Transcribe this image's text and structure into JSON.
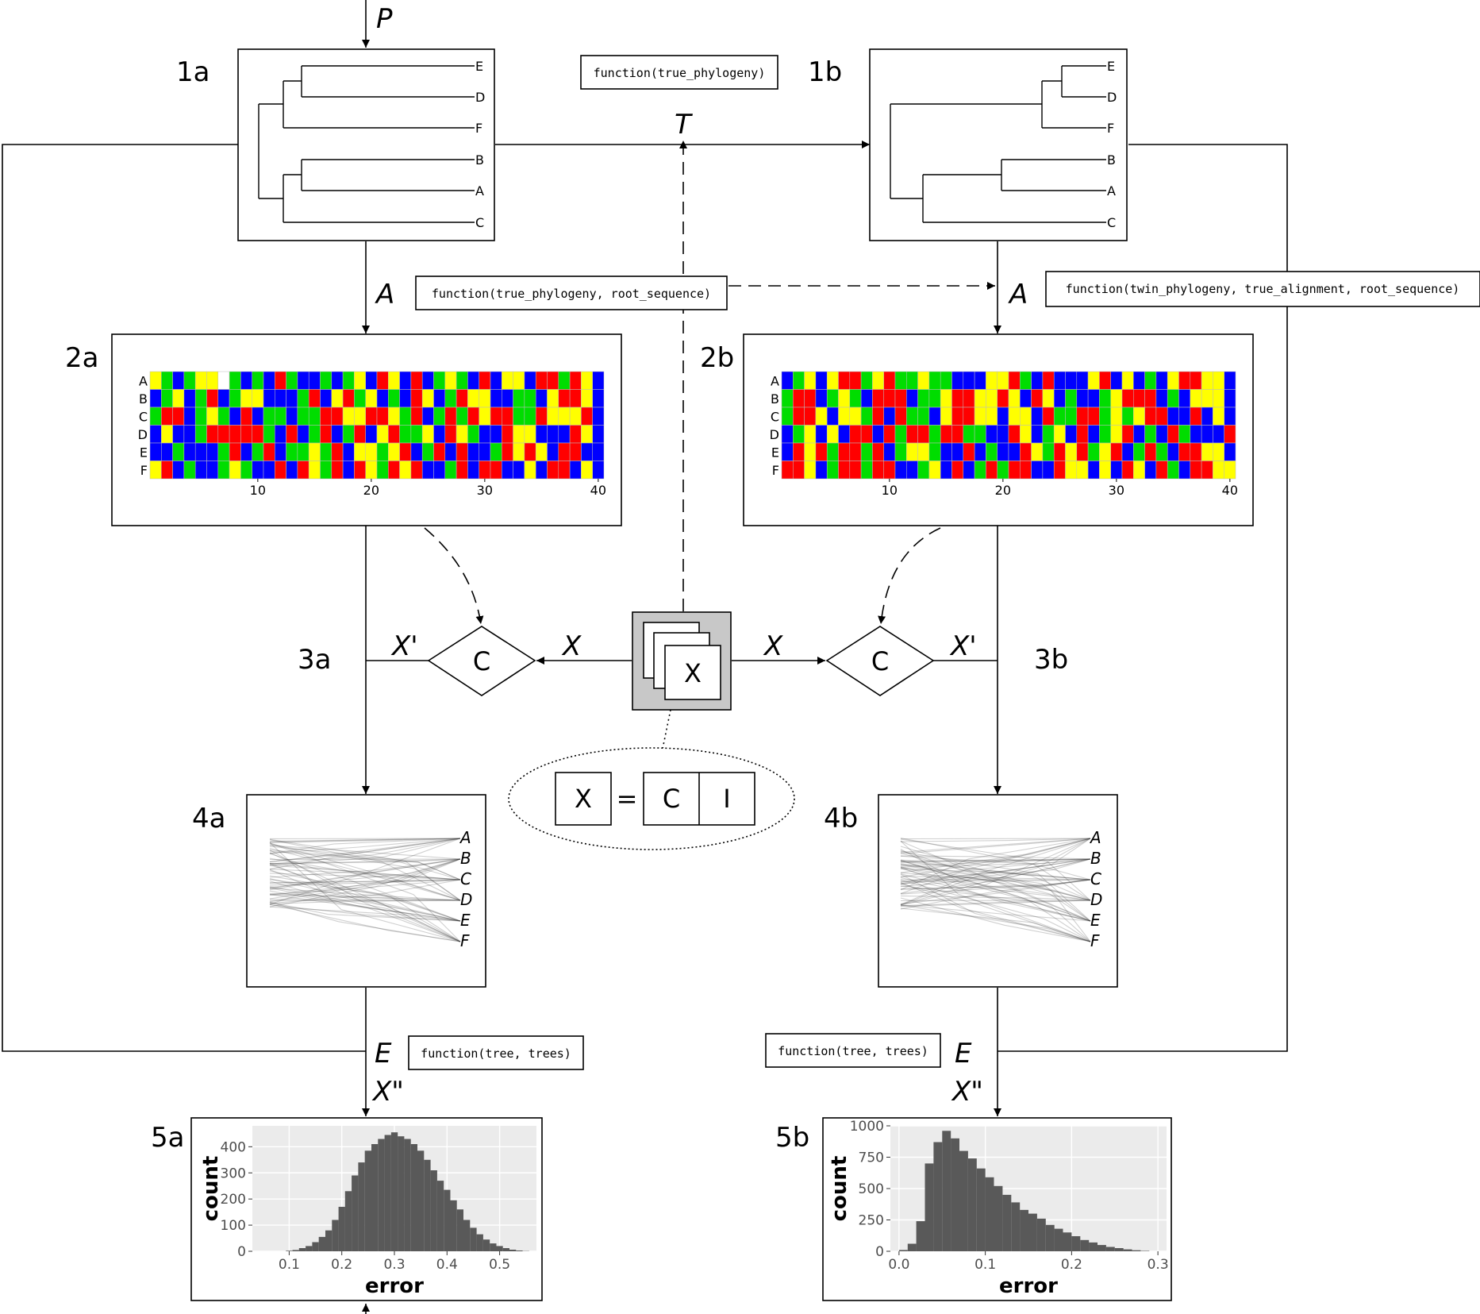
{
  "edges": {
    "input": "P",
    "tree_to_alignment": "A",
    "tree_to_twin": "T",
    "alignment_to_posterior": "X'",
    "settings": "X",
    "posterior_to_errors_e": "E",
    "posterior_to_errors_x": "X\""
  },
  "steps": {
    "s1a": "1a",
    "s1b": "1b",
    "s2a": "2a",
    "s2b": "2b",
    "s3a": "3a",
    "s3b": "3b",
    "s4a": "4a",
    "s4b": "4b",
    "s5a": "5a",
    "s5b": "5b"
  },
  "functions": {
    "twin_tree": "function(true_phylogeny)",
    "true_alignment": "function(true_phylogeny, root_sequence)",
    "twin_alignment": "function(twin_phylogeny, true_alignment, root_sequence)",
    "errors_true": "function(tree, trees)",
    "errors_twin": "function(tree, trees)"
  },
  "check_label": "C",
  "settings": {
    "label": "X",
    "equation": {
      "lhs": "X",
      "eq": "=",
      "parts": [
        "C",
        "I"
      ]
    }
  },
  "tips_ordered": [
    "E",
    "D",
    "F",
    "B",
    "A",
    "C"
  ],
  "true_tree_tips": [
    "E",
    "D",
    "F",
    "B",
    "A",
    "C"
  ],
  "twin_tree_tips": [
    "E",
    "D",
    "F",
    "B",
    "A",
    "C"
  ],
  "alignment": {
    "taxa": [
      "A",
      "B",
      "C",
      "D",
      "E",
      "F"
    ],
    "ticks": [
      "10",
      "20",
      "30",
      "40"
    ],
    "length": 40,
    "colors": {
      "A": "#ff0000",
      "C": "#00dd00",
      "G": "#0000ff",
      "T": "#ffff00"
    },
    "true": {
      "A": "TCGCTTACGCGRCGGCGCTGRTGRGCTCGRGTTGRRCRTG",
      "B": "GCTGCRGCTTGGGCRGTRCTGCGRTGCRTTGGCCGTRRTG",
      "C": "CRRGCTCGRGCCGCCRRTTRRTCRGCRCRTRRCCRTTTRG",
      "D": "GTGGCRRRRRCGRGCRGCRGTRCCTGRTCGGRTTGGGRTG",
      "E": "GGCGGGCRGCRGCCTCRGTTCTRGCRGRGGCRTRTGRRGG",
      "F": "TRGCGGCTCGGRGRTCRGRTCRTRGGCRGRRGGTGRRGTG"
    },
    "twin": {
      "A": "GCTGTRRCTRCCTCCGGGTTRCGRGGGTRGTGCGTRRTTG",
      "B": "CRRGCTCGRRRGCCTRRTTRTGRTGCGGCTRRRGCGTTTG",
      "C": "CRRTGTTCRGRCCGTRRTTGTTGRCCRRCTCTRRGGRGTG",
      "D": "GCTGTGRRGRCRRCRRCCGGRTGCTGRGCTRGCGRCGGGR",
      "E": "GRTRCRRCRGCTTCGGRGCGGRTCRTRCTRGCRCGRRTTG",
      "F": "RRTGCRRCRRGGCTGRGCRCRRGGRTTGTGRTGRCGRRTT"
    }
  },
  "posterior_tips": [
    "A",
    "B",
    "C",
    "D",
    "E",
    "F"
  ],
  "histograms": {
    "true": {
      "ylabel": "count",
      "xlabel": "error",
      "yticks": [
        "0",
        "100",
        "200",
        "300",
        "400"
      ],
      "xticks": [
        "0.1",
        "0.2",
        "0.3",
        "0.4",
        "0.5"
      ]
    },
    "twin": {
      "ylabel": "count",
      "xlabel": "error",
      "yticks": [
        "0",
        "250",
        "500",
        "750",
        "1000"
      ],
      "xticks": [
        "0.0",
        "0.1",
        "0.2",
        "0.3"
      ]
    }
  },
  "chart_data": [
    {
      "type": "bar",
      "ylabel": "count",
      "xlabel": "error",
      "xlim": [
        0.03,
        0.57
      ],
      "ylim": [
        0,
        480
      ],
      "grid": true,
      "bin_width": 0.0125,
      "x": [
        0.1,
        0.1125,
        0.125,
        0.1375,
        0.15,
        0.1625,
        0.175,
        0.1875,
        0.2,
        0.2125,
        0.225,
        0.2375,
        0.25,
        0.2625,
        0.275,
        0.2875,
        0.3,
        0.3125,
        0.325,
        0.3375,
        0.35,
        0.3625,
        0.375,
        0.3875,
        0.4,
        0.4125,
        0.425,
        0.4375,
        0.45,
        0.4625,
        0.475,
        0.4875,
        0.5,
        0.5125,
        0.525,
        0.5375,
        0.55
      ],
      "values": [
        2,
        5,
        12,
        20,
        35,
        55,
        80,
        120,
        170,
        230,
        290,
        340,
        385,
        410,
        430,
        445,
        455,
        440,
        430,
        410,
        385,
        350,
        310,
        270,
        235,
        195,
        160,
        120,
        90,
        65,
        45,
        30,
        20,
        12,
        6,
        3,
        1
      ]
    },
    {
      "type": "bar",
      "ylabel": "count",
      "xlabel": "error",
      "xlim": [
        -0.01,
        0.31
      ],
      "ylim": [
        0,
        1000
      ],
      "grid": true,
      "bin_width": 0.01,
      "x": [
        0.005,
        0.015,
        0.025,
        0.035,
        0.045,
        0.055,
        0.065,
        0.075,
        0.085,
        0.095,
        0.105,
        0.115,
        0.125,
        0.135,
        0.145,
        0.155,
        0.165,
        0.175,
        0.185,
        0.195,
        0.205,
        0.215,
        0.225,
        0.235,
        0.245,
        0.255,
        0.265,
        0.275,
        0.285
      ],
      "values": [
        10,
        60,
        240,
        700,
        870,
        960,
        900,
        800,
        740,
        660,
        590,
        520,
        450,
        390,
        330,
        300,
        260,
        210,
        180,
        150,
        120,
        90,
        70,
        50,
        35,
        25,
        15,
        8,
        3
      ]
    }
  ]
}
